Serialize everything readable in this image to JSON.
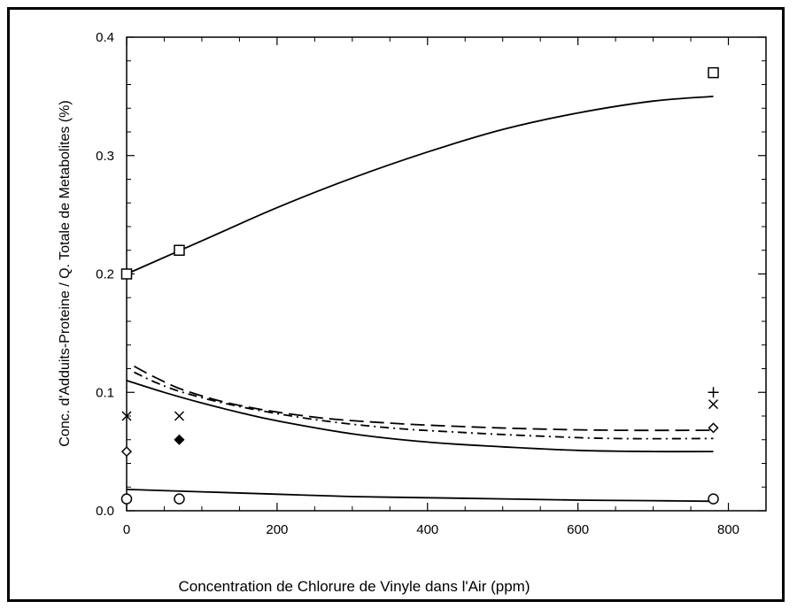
{
  "chart_data": {
    "type": "scatter",
    "title": "",
    "xlabel": "Concentration de Chlorure de Vinyle dans l'Air  (ppm)",
    "ylabel": "Conc. d'Adduits-Proteine / Q. Totale de Metabolites  (%)",
    "xlim": [
      0,
      850
    ],
    "ylim": [
      0,
      0.4
    ],
    "xticks": [
      0,
      200,
      400,
      600,
      800
    ],
    "xtick_labels": [
      "0",
      "200",
      "400",
      "600",
      "800"
    ],
    "yticks": [
      0.0,
      0.1,
      0.2,
      0.3,
      0.4
    ],
    "ytick_labels": [
      "0.0",
      "0.1",
      "0.2",
      "0.3",
      "0.4"
    ],
    "grid": false,
    "points": [
      {
        "marker": "square",
        "x": 0,
        "y": 0.2
      },
      {
        "marker": "square",
        "x": 70,
        "y": 0.22
      },
      {
        "marker": "square",
        "x": 780,
        "y": 0.37
      },
      {
        "marker": "x",
        "x": 0,
        "y": 0.08
      },
      {
        "marker": "x",
        "x": 70,
        "y": 0.08
      },
      {
        "marker": "x",
        "x": 780,
        "y": 0.09
      },
      {
        "marker": "plus",
        "x": 780,
        "y": 0.1
      },
      {
        "marker": "diamond",
        "x": 0,
        "y": 0.05
      },
      {
        "marker": "filled-diamond",
        "x": 70,
        "y": 0.06
      },
      {
        "marker": "diamond",
        "x": 780,
        "y": 0.07
      },
      {
        "marker": "circle",
        "x": 0,
        "y": 0.01
      },
      {
        "marker": "circle",
        "x": 70,
        "y": 0.01
      },
      {
        "marker": "circle",
        "x": 780,
        "y": 0.01
      }
    ],
    "curves": [
      {
        "style": "solid",
        "x": [
          0,
          100,
          200,
          300,
          400,
          500,
          600,
          700,
          780
        ],
        "y": [
          0.2,
          0.228,
          0.256,
          0.281,
          0.303,
          0.322,
          0.336,
          0.346,
          0.35
        ]
      },
      {
        "style": "long-dash",
        "x": [
          10,
          40,
          80,
          150,
          250,
          350,
          450,
          550,
          650,
          780
        ],
        "y": [
          0.122,
          0.112,
          0.101,
          0.089,
          0.079,
          0.074,
          0.071,
          0.069,
          0.068,
          0.068
        ]
      },
      {
        "style": "dash-dot",
        "x": [
          10,
          40,
          80,
          150,
          250,
          350,
          450,
          550,
          650,
          780
        ],
        "y": [
          0.117,
          0.108,
          0.099,
          0.088,
          0.077,
          0.07,
          0.066,
          0.063,
          0.061,
          0.061
        ]
      },
      {
        "style": "solid",
        "x": [
          0,
          50,
          100,
          150,
          200,
          300,
          400,
          500,
          600,
          700,
          780
        ],
        "y": [
          0.11,
          0.1,
          0.091,
          0.083,
          0.076,
          0.065,
          0.058,
          0.054,
          0.051,
          0.05,
          0.05
        ]
      },
      {
        "style": "solid",
        "x": [
          0,
          100,
          200,
          300,
          400,
          500,
          600,
          700,
          780
        ],
        "y": [
          0.018,
          0.016,
          0.014,
          0.012,
          0.011,
          0.01,
          0.009,
          0.0085,
          0.008
        ]
      }
    ]
  }
}
